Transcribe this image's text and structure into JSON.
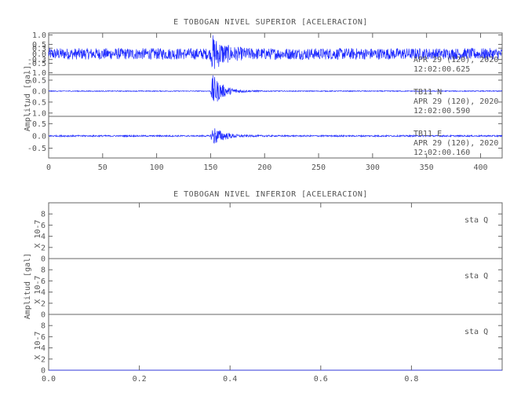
{
  "chart_data": [
    {
      "type": "line",
      "title": "E TOBOGAN NIVEL SUPERIOR [ACELERACION]",
      "ylabel": "Amplitud [gal]",
      "xlabel": "",
      "xlim": [
        0,
        420
      ],
      "x_ticks": [
        "0",
        "50",
        "100",
        "150",
        "200",
        "250",
        "300",
        "350",
        "400"
      ],
      "panels": [
        {
          "id": "top-1",
          "y_ticks": [
            "1.0",
            "0.5",
            "0.3",
            "0.0",
            "-0.3",
            "-0.5",
            "-1.0"
          ],
          "label_lines": [
            "APR 29 (120), 2020",
            "12:02:00.625"
          ],
          "series": [
            {
              "color": "#1f2bff",
              "amplitude": 0.3,
              "event_start": 150,
              "event_peak": 0.9
            }
          ]
        },
        {
          "id": "top-2",
          "y_ticks": [
            "0.5",
            "0.0",
            "-0.5",
            "-1.0"
          ],
          "label_lines": [
            "TB11   N",
            "APR 29 (120), 2020",
            "12:02:00.590"
          ],
          "series": [
            {
              "color": "#1f2bff",
              "amplitude": 0.02,
              "event_start": 150,
              "event_peak": 0.9
            }
          ]
        },
        {
          "id": "top-3",
          "y_ticks": [
            "0.5",
            "0.0",
            "-0.5"
          ],
          "label_lines": [
            "TB11   E",
            "APR 29 (120), 2020",
            "12:02:00.160"
          ],
          "series": [
            {
              "color": "#1f2bff",
              "amplitude": 0.03,
              "event_start": 150,
              "event_peak": 0.5
            }
          ]
        }
      ]
    },
    {
      "type": "line",
      "title": "E TOBOGAN NIVEL INFERIOR [ACELERACION]",
      "ylabel": "Amplitud [gal]",
      "xlabel": "",
      "xlim": [
        0.0,
        1.0
      ],
      "x_ticks": [
        "0.0",
        "0.2",
        "0.4",
        "0.6",
        "0.8"
      ],
      "panels": [
        {
          "id": "bottom-1",
          "y_ticks": [
            "8",
            "6",
            "4",
            "2",
            "0"
          ],
          "scale_label": "X 10-7",
          "station_label": "sta   Q",
          "series": [
            {
              "color": "#1f2bff",
              "values": [
                0,
                0
              ]
            }
          ]
        },
        {
          "id": "bottom-2",
          "y_ticks": [
            "8",
            "6",
            "4",
            "2",
            "0"
          ],
          "scale_label": "X 10-7",
          "station_label": "sta   Q",
          "series": [
            {
              "color": "#1f2bff",
              "values": [
                0,
                0
              ]
            }
          ]
        },
        {
          "id": "bottom-3",
          "y_ticks": [
            "8",
            "6",
            "4",
            "2",
            "0"
          ],
          "scale_label": "X 10-7",
          "station_label": "sta   Q",
          "series": [
            {
              "color": "#1f2bff",
              "values": [
                0,
                0
              ]
            }
          ]
        }
      ]
    }
  ]
}
